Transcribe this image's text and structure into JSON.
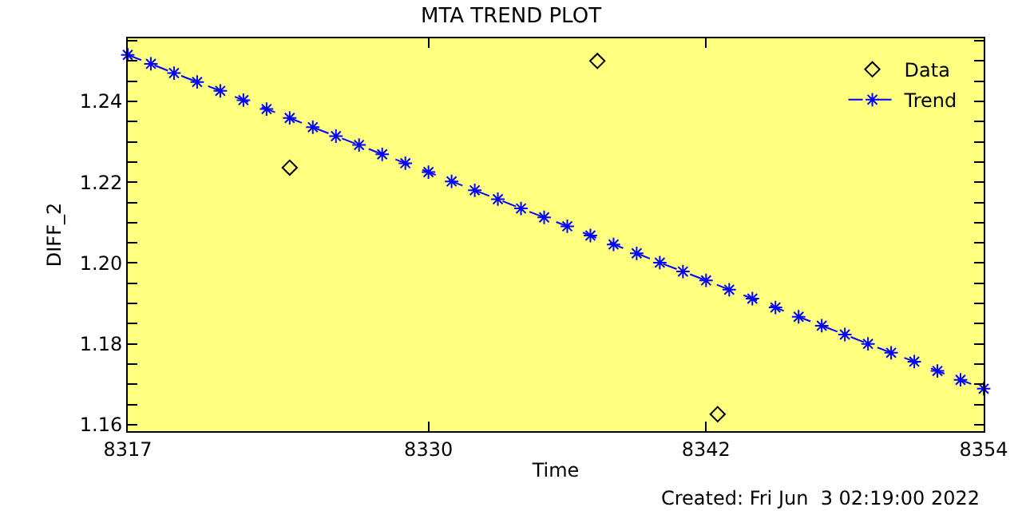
{
  "chart_data": {
    "type": "scatter",
    "title": "MTA TREND PLOT",
    "xlabel": "Time",
    "ylabel": "DIFF_2",
    "annotations": [
      "Created: Fri Jun  3 02:19:00 2022"
    ],
    "xlim": [
      8317,
      8354
    ],
    "xticks": [
      8317,
      8330,
      8342,
      8354
    ],
    "ylim": [
      1.1584,
      1.2556
    ],
    "yticks": [
      {
        "value": 1.16,
        "label": "1.16"
      },
      {
        "value": 1.165,
        "label": null
      },
      {
        "value": 1.17,
        "label": null
      },
      {
        "value": 1.175,
        "label": null
      },
      {
        "value": 1.18,
        "label": "1.18"
      },
      {
        "value": 1.185,
        "label": null
      },
      {
        "value": 1.19,
        "label": null
      },
      {
        "value": 1.195,
        "label": null
      },
      {
        "value": 1.2,
        "label": "1.20"
      },
      {
        "value": 1.205,
        "label": null
      },
      {
        "value": 1.21,
        "label": null
      },
      {
        "value": 1.215,
        "label": null
      },
      {
        "value": 1.22,
        "label": "1.22"
      },
      {
        "value": 1.225,
        "label": null
      },
      {
        "value": 1.23,
        "label": null
      },
      {
        "value": 1.235,
        "label": null
      },
      {
        "value": 1.24,
        "label": "1.24"
      },
      {
        "value": 1.245,
        "label": null
      },
      {
        "value": 1.25,
        "label": null
      },
      {
        "value": 1.255,
        "label": null
      }
    ],
    "grid": false,
    "legend": "top right",
    "series": [
      {
        "name": "Data",
        "type": "scatter",
        "marker": "diamond",
        "color": "#000000",
        "x": [
          8324.0,
          8337.3,
          8342.5
        ],
        "values": [
          1.2236,
          1.25,
          1.1626
        ]
      },
      {
        "name": "Trend",
        "type": "line",
        "marker": "cross",
        "line_style": "dashed",
        "color": "#0000ff",
        "x": [
          8317,
          8318,
          8319,
          8320,
          8321,
          8322,
          8323,
          8324,
          8325,
          8326,
          8327,
          8328,
          8329,
          8330,
          8331,
          8332,
          8333,
          8334,
          8335,
          8336,
          8337,
          8338,
          8339,
          8340,
          8341,
          8342,
          8343,
          8344,
          8345,
          8346,
          8347,
          8348,
          8349,
          8350,
          8351,
          8352,
          8353,
          8354
        ],
        "values": [
          1.2515,
          1.2493,
          1.247,
          1.2448,
          1.2426,
          1.2403,
          1.2381,
          1.2359,
          1.2336,
          1.2314,
          1.2292,
          1.2269,
          1.2247,
          1.2225,
          1.2202,
          1.218,
          1.2158,
          1.2135,
          1.2113,
          1.2091,
          1.2068,
          1.2046,
          1.2024,
          1.2001,
          1.1979,
          1.1957,
          1.1934,
          1.1912,
          1.189,
          1.1867,
          1.1845,
          1.1823,
          1.18,
          1.1778,
          1.1756,
          1.1733,
          1.1711,
          1.1689
        ]
      }
    ]
  }
}
